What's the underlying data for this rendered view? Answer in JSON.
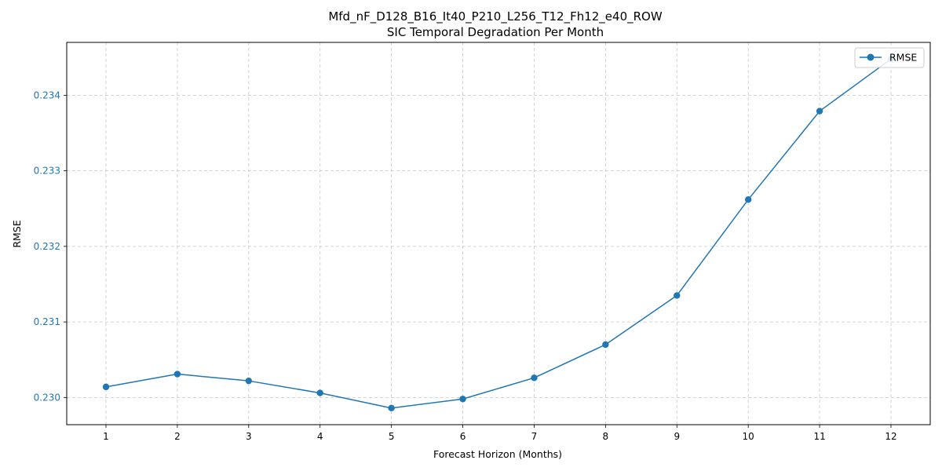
{
  "chart_data": {
    "type": "line",
    "title": "Mfd_nF_D128_B16_It40_P210_L256_T12_Fh12_e40_ROW",
    "subtitle": "SIC Temporal Degradation Per Month",
    "xlabel": "Forecast Horizon (Months)",
    "ylabel": "RMSE",
    "x": [
      1,
      2,
      3,
      4,
      5,
      6,
      7,
      8,
      9,
      10,
      11,
      12
    ],
    "series": [
      {
        "name": "RMSE",
        "color": "#1f77b4",
        "values": [
          0.23014,
          0.23031,
          0.23022,
          0.23006,
          0.22986,
          0.22998,
          0.23026,
          0.2307,
          0.23135,
          0.23262,
          0.23379,
          0.23448
        ]
      }
    ],
    "xticks": [
      "1",
      "2",
      "3",
      "4",
      "5",
      "6",
      "7",
      "8",
      "9",
      "10",
      "11",
      "12"
    ],
    "yticks": [
      0.23,
      0.231,
      0.232,
      0.233,
      0.234
    ],
    "ytick_labels": [
      "0.230",
      "0.231",
      "0.232",
      "0.233",
      "0.234"
    ],
    "xlim": [
      0.45,
      12.55
    ],
    "ylim": [
      0.22964,
      0.2347
    ],
    "ytick_color": "#1f77b4",
    "grid": true,
    "grid_style": "dashed",
    "legend_position": "top-right",
    "marker": "circle"
  }
}
